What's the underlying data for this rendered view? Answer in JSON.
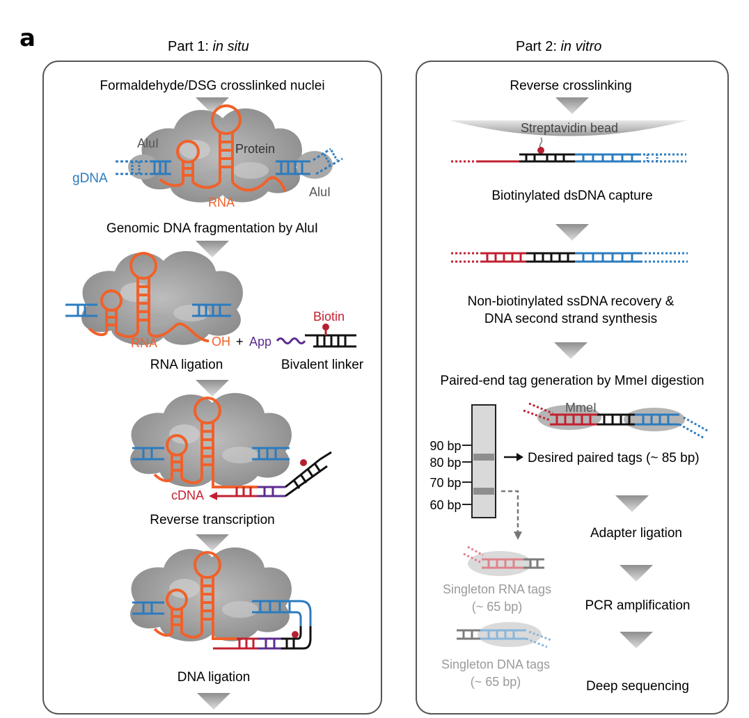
{
  "panel_letter": "a",
  "part1": {
    "heading_prefix": "Part 1: ",
    "heading_italic": "in situ",
    "steps": {
      "start": "Formaldehyde/DSG crosslinked nuclei",
      "fragmentation": "Genomic DNA fragmentation by AluI",
      "rna_ligation": "RNA ligation",
      "bivalent_linker": "Bivalent linker",
      "reverse_transcription": "Reverse transcription",
      "dna_ligation": "DNA ligation"
    },
    "labels": {
      "alui_left": "AluI",
      "alui_right": "AluI",
      "protein": "Protein",
      "gdna": "gDNA",
      "rna_top": "RNA",
      "rna_mid": "RNA",
      "oh": "OH",
      "plus": "+",
      "app": "App",
      "biotin": "Biotin",
      "cdna": "cDNA"
    }
  },
  "part2": {
    "heading_prefix": "Part 2: ",
    "heading_italic": "in vitro",
    "steps": {
      "reverse_crosslinking": "Reverse crosslinking",
      "streptavidin_bead": "Streptavidin bead",
      "capture": "Biotinylated dsDNA capture",
      "recovery_line1": "Non-biotinylated ssDNA recovery &",
      "recovery_line2": "DNA second strand synthesis",
      "pet_generation": "Paired-end tag generation by MmeI digestion",
      "mmei": "MmeI",
      "desired_tags": "Desired paired tags (~ 85 bp)",
      "adapter_ligation": "Adapter ligation",
      "pcr": "PCR amplification",
      "deep_seq": "Deep sequencing",
      "singleton_rna_line1": "Singleton RNA tags",
      "singleton_rna_line2": "(~ 65 bp)",
      "singleton_dna_line1": "Singleton DNA tags",
      "singleton_dna_line2": "(~ 65 bp)"
    },
    "gel_ladder": [
      "90 bp",
      "80 bp",
      "70 bp",
      "60 bp"
    ]
  },
  "colors": {
    "rna": "#f0612a",
    "gdna": "#2b7bbf",
    "cdna": "#c22030",
    "linker": "#111111",
    "app": "#5b2d8e",
    "protein": "#8c8c8c",
    "arrow": "#b8b8b8",
    "faded_text": "#9a9a9a"
  }
}
